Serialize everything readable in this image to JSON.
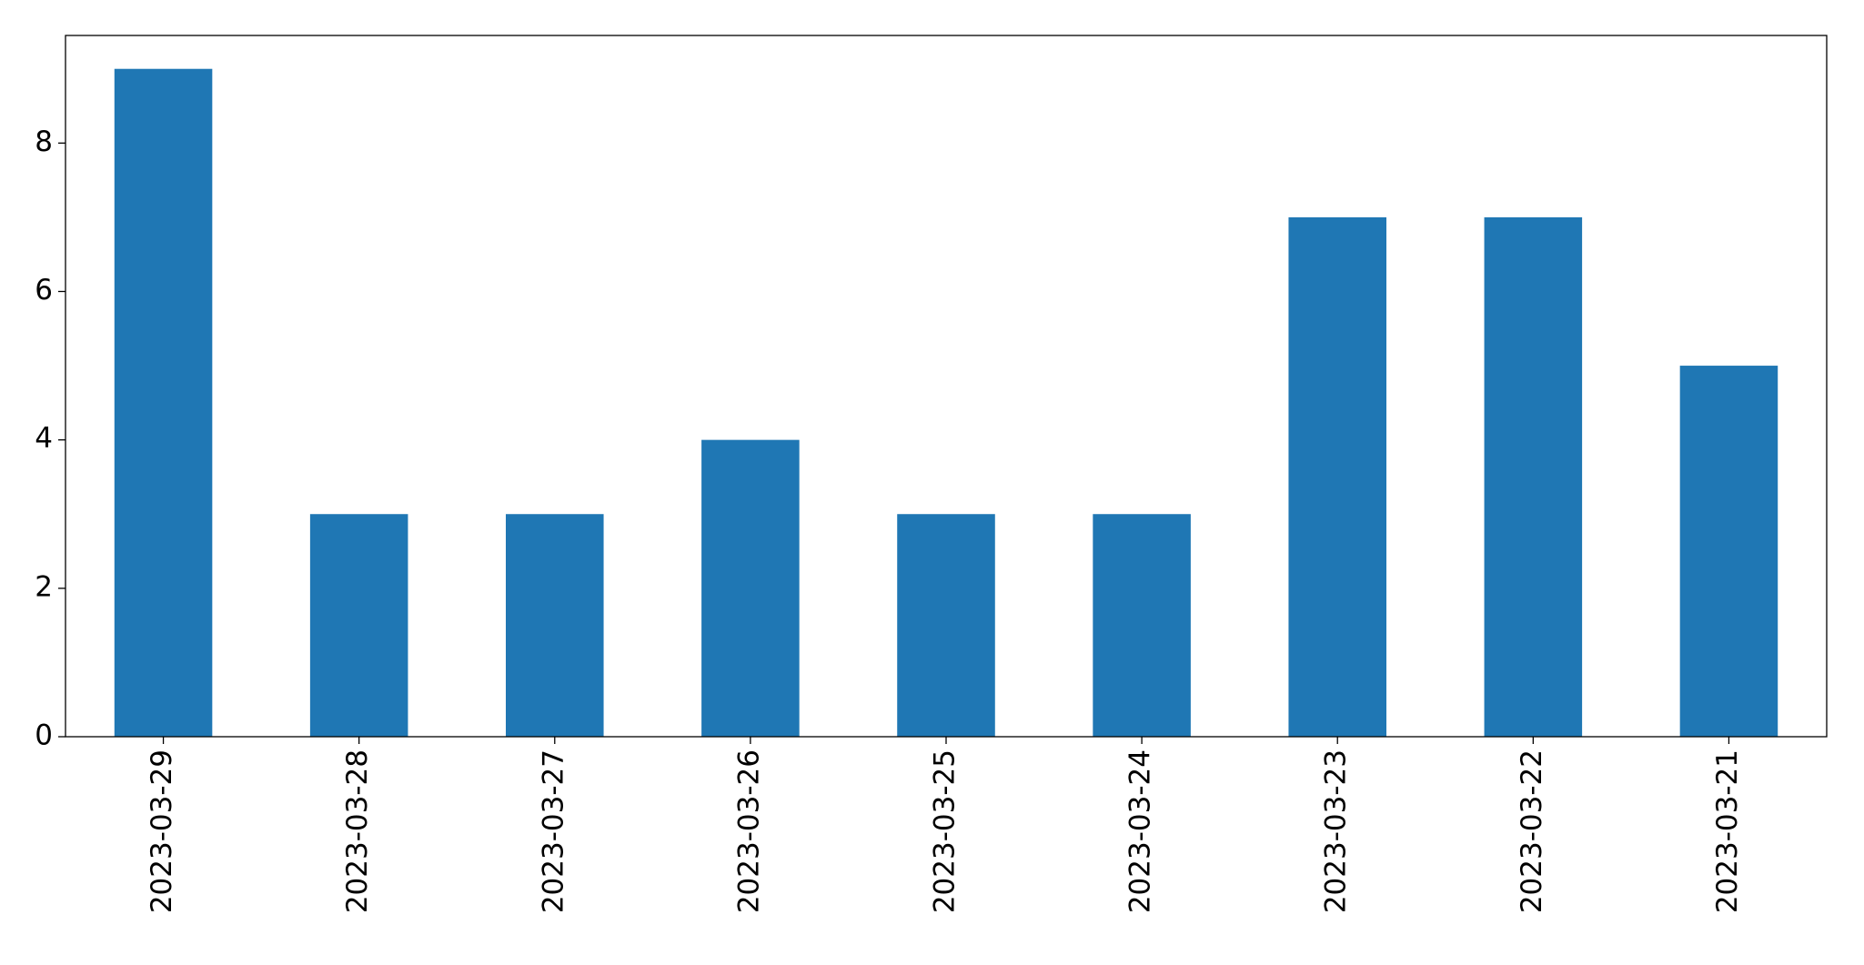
{
  "chart_data": {
    "type": "bar",
    "categories": [
      "2023-03-29",
      "2023-03-28",
      "2023-03-27",
      "2023-03-26",
      "2023-03-25",
      "2023-03-24",
      "2023-03-23",
      "2023-03-22",
      "2023-03-21"
    ],
    "values": [
      9,
      3,
      3,
      4,
      3,
      3,
      7,
      7,
      5
    ],
    "color": "#1f77b4",
    "ylim": [
      0,
      9.45
    ],
    "yticks": [
      0,
      2,
      4,
      6,
      8
    ],
    "grid": false
  }
}
